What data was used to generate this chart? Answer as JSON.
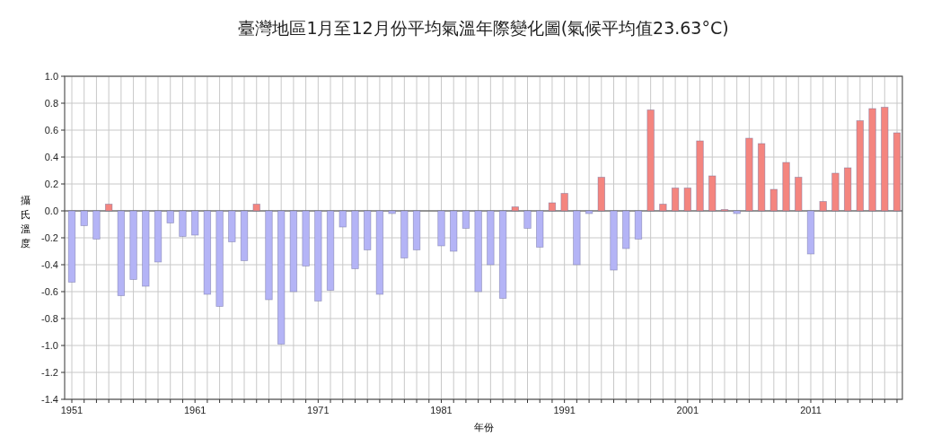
{
  "chart_data": {
    "type": "bar",
    "title": "臺灣地區1月至12月份平均氣溫年際變化圖(氣候平均值23.63°C)",
    "xlabel": "年份",
    "ylabel": "攝氏溫度",
    "categories": [
      "1951",
      null,
      null,
      null,
      null,
      null,
      null,
      null,
      null,
      null,
      "1961",
      null,
      null,
      null,
      null,
      null,
      null,
      null,
      null,
      null,
      "1971",
      null,
      null,
      null,
      null,
      null,
      null,
      null,
      null,
      null,
      "1981",
      null,
      null,
      null,
      null,
      null,
      null,
      null,
      null,
      null,
      "1991",
      null,
      null,
      null,
      null,
      null,
      null,
      null,
      null,
      null,
      "2001",
      null,
      null,
      null,
      null,
      null,
      null,
      null,
      null,
      null,
      "2011",
      null,
      null,
      null,
      null,
      null,
      null,
      null
    ],
    "values": [
      -0.53,
      -0.11,
      -0.21,
      0.05,
      -0.63,
      -0.51,
      -0.56,
      -0.38,
      -0.09,
      -0.19,
      -0.18,
      -0.62,
      -0.71,
      -0.23,
      -0.37,
      0.05,
      -0.66,
      -0.99,
      -0.6,
      -0.41,
      -0.67,
      -0.59,
      -0.12,
      -0.43,
      -0.29,
      -0.62,
      -0.02,
      -0.35,
      -0.29,
      0.0,
      -0.26,
      -0.3,
      -0.13,
      -0.6,
      -0.4,
      -0.65,
      0.03,
      -0.13,
      -0.27,
      0.06,
      0.13,
      -0.4,
      -0.02,
      0.25,
      -0.44,
      -0.28,
      -0.21,
      0.75,
      0.05,
      0.17,
      0.17,
      0.52,
      0.26,
      0.01,
      -0.02,
      0.54,
      0.5,
      0.16,
      0.36,
      0.25,
      -0.32,
      0.07,
      0.28,
      0.32,
      0.67,
      0.76,
      0.77,
      0.58
    ],
    "colors": [
      "#b4b4f6",
      "#b4b4f6",
      "#b4b4f6",
      "#f4857f",
      "#b4b4f6",
      "#b4b4f6",
      "#b4b4f6",
      "#b4b4f6",
      "#b4b4f6",
      "#b4b4f6",
      "#b4b4f6",
      "#b4b4f6",
      "#b4b4f6",
      "#b4b4f6",
      "#b4b4f6",
      "#f4857f",
      "#b4b4f6",
      "#b4b4f6",
      "#b4b4f6",
      "#b4b4f6",
      "#b4b4f6",
      "#b4b4f6",
      "#b4b4f6",
      "#b4b4f6",
      "#b4b4f6",
      "#b4b4f6",
      "#b4b4f6",
      "#b4b4f6",
      "#b4b4f6",
      "#b4b4f6",
      "#b4b4f6",
      "#b4b4f6",
      "#b4b4f6",
      "#b4b4f6",
      "#b4b4f6",
      "#b4b4f6",
      "#f4857f",
      "#b4b4f6",
      "#b4b4f6",
      "#f4857f",
      "#f4857f",
      "#b4b4f6",
      "#b4b4f6",
      "#f4857f",
      "#b4b4f6",
      "#b4b4f6",
      "#b4b4f6",
      "#f4857f",
      "#f4857f",
      "#f4857f",
      "#f4857f",
      "#f4857f",
      "#f4857f",
      "#f4857f",
      "#b4b4f6",
      "#f4857f",
      "#f4857f",
      "#f4857f",
      "#f4857f",
      "#f4857f",
      "#b4b4f6",
      "#f4857f",
      "#f4857f",
      "#f4857f",
      "#f4857f",
      "#f4857f",
      "#f4857f",
      "#f4857f"
    ],
    "ylim": [
      -1.4,
      1.0
    ],
    "yticks": [
      {
        "value": -1.4,
        "label": "-1.4"
      },
      {
        "value": -1.2,
        "label": "-1.2"
      },
      {
        "value": -1.0,
        "label": "-1.0"
      },
      {
        "value": -0.8,
        "label": "-0.8"
      },
      {
        "value": -0.6,
        "label": "-0.6"
      },
      {
        "value": -0.4,
        "label": "-0.4"
      },
      {
        "value": -0.2,
        "label": "-0.2"
      },
      {
        "value": 0.0,
        "label": "0.0"
      },
      {
        "value": 0.2,
        "label": "0.2"
      },
      {
        "value": 0.4,
        "label": "0.4"
      },
      {
        "value": 0.6,
        "label": "0.6"
      },
      {
        "value": 0.8,
        "label": "0.8"
      },
      {
        "value": 1.0,
        "label": "1.0"
      }
    ],
    "grid": true
  }
}
